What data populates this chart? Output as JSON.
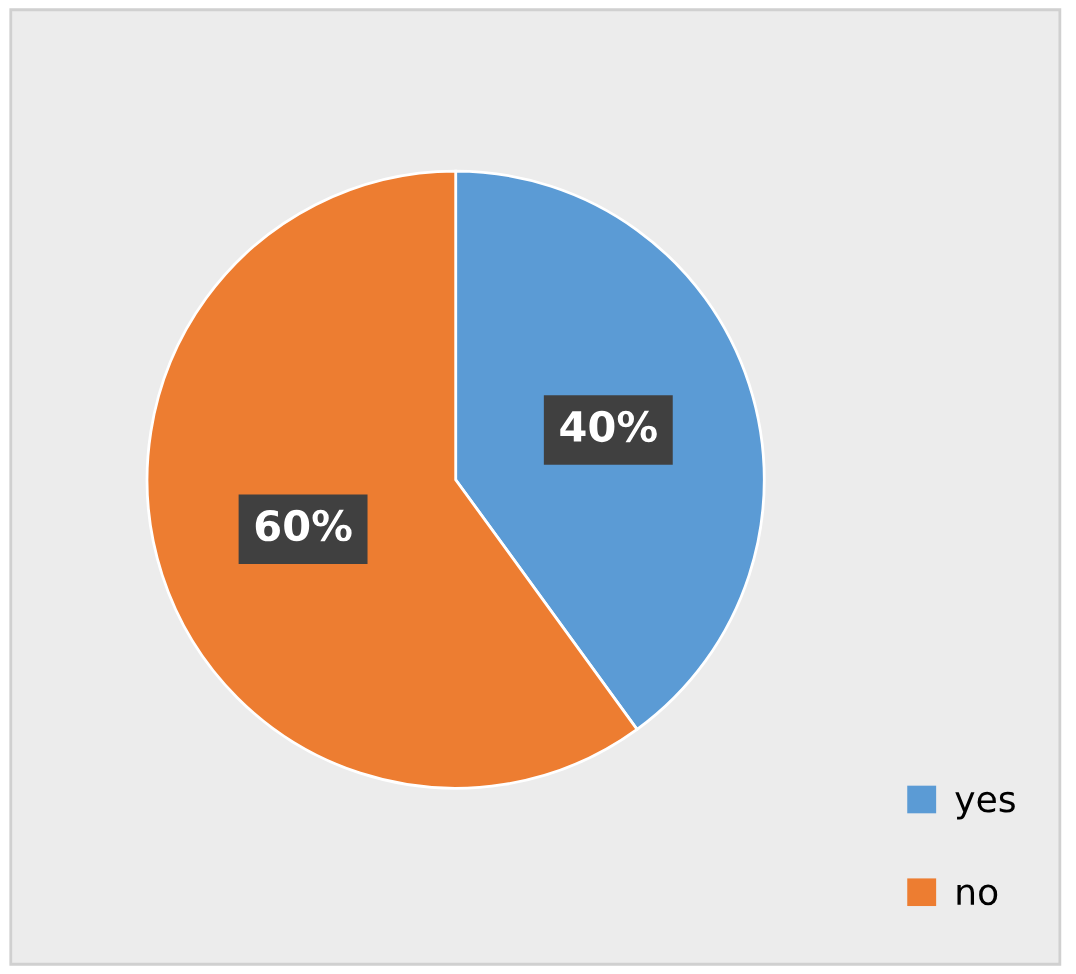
{
  "chart_data": {
    "type": "pie",
    "categories": [
      "yes",
      "no"
    ],
    "values": [
      40,
      60
    ],
    "colors": [
      "#5b9bd5",
      "#ed7d31"
    ],
    "value_labels": [
      "40%",
      "60%"
    ],
    "legend": "bottom right"
  }
}
